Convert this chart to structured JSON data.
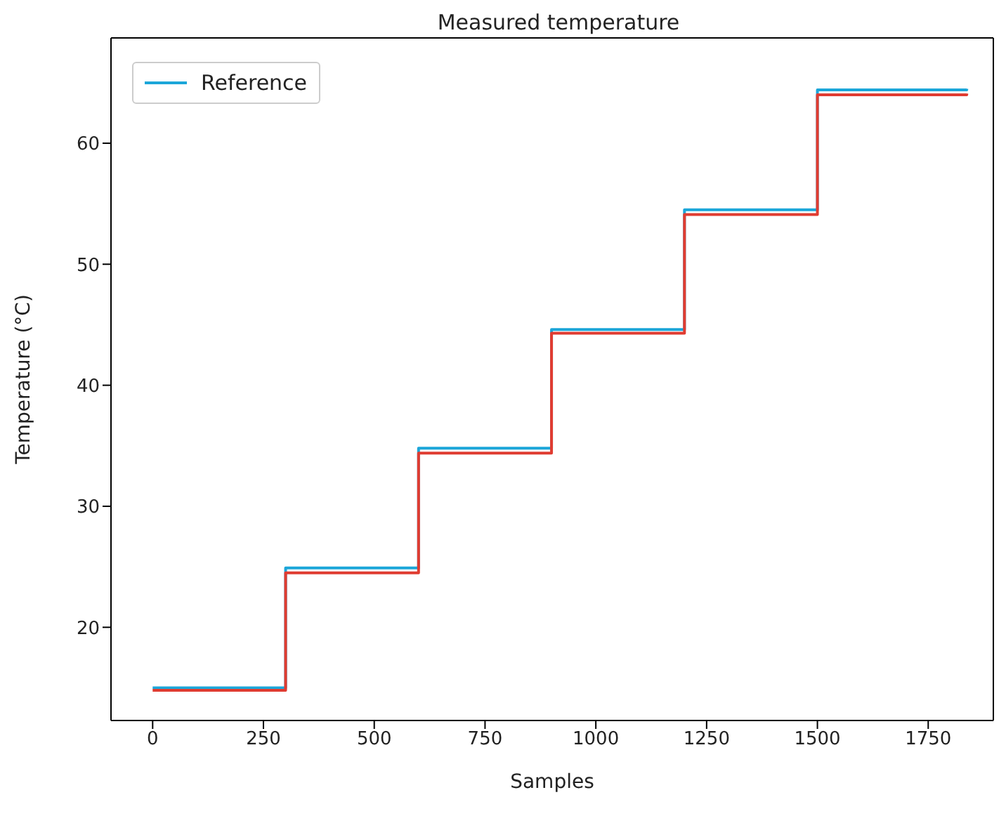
{
  "chart_data": {
    "type": "step",
    "title": "Measured temperature",
    "xlabel": "Samples",
    "ylabel": "Temperature (°C)",
    "xlim": [
      -94,
      1897
    ],
    "xticks": [
      0,
      250,
      500,
      750,
      1000,
      1250,
      1500,
      1750
    ],
    "ylim": [
      12.3,
      68.7
    ],
    "yticks": [
      20,
      30,
      40,
      50,
      60
    ],
    "grid": false,
    "legend": "top left",
    "marker": "none",
    "line_style": "solid",
    "series": [
      {
        "name": "Reference",
        "color": "#1ba6d9",
        "x": [
          0,
          300,
          600,
          900,
          1200,
          1500,
          1837
        ],
        "values": [
          15.0,
          24.9,
          34.8,
          44.6,
          54.5,
          64.4,
          64.5
        ]
      },
      {
        "color": "#e03c31",
        "x": [
          0,
          300,
          600,
          900,
          1200,
          1500,
          1837
        ],
        "values": [
          14.8,
          24.5,
          34.4,
          44.3,
          54.1,
          64.0,
          64.1
        ]
      }
    ]
  }
}
